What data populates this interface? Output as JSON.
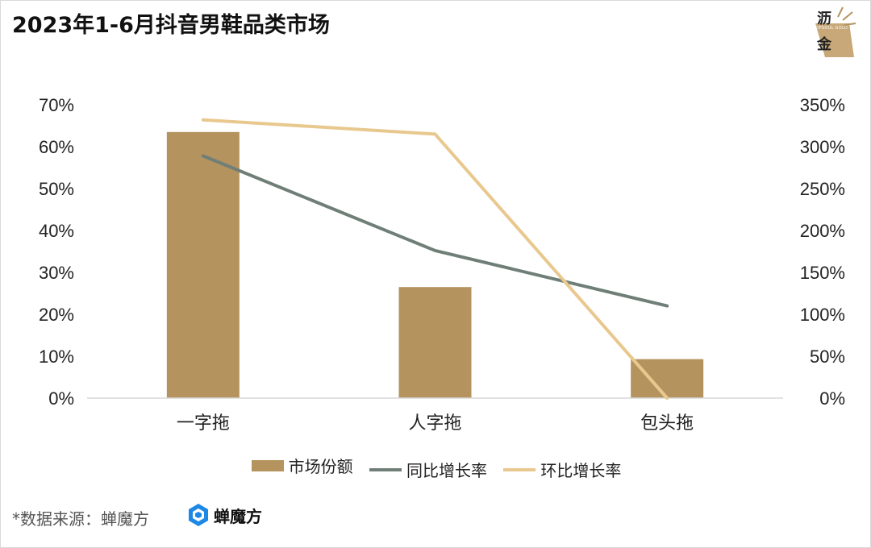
{
  "title": "2023年1-6月抖音男鞋品类市场",
  "logo": {
    "char1": "沥",
    "char2": "金",
    "small": "TOPSOUL GOLD"
  },
  "source_text": "*数据来源：蝉魔方",
  "brand_text": "蝉魔方",
  "colors": {
    "bar": "#b5935e",
    "yoy": "#6f7f77",
    "mom": "#e8c88e"
  },
  "chart_data": {
    "type": "bar",
    "categories": [
      "一字拖",
      "人字拖",
      "包头拖"
    ],
    "series": [
      {
        "name": "市场份额",
        "type": "bar",
        "axis": "left",
        "values": [
          63.5,
          26.5,
          9.3
        ],
        "color": "#b5935e"
      },
      {
        "name": "同比增长率",
        "type": "line",
        "axis": "right",
        "values": [
          289,
          176,
          110
        ],
        "color": "#6f7f77"
      },
      {
        "name": "环比增长率",
        "type": "line",
        "axis": "right",
        "values": [
          332,
          315,
          0
        ],
        "color": "#e8c88e"
      }
    ],
    "y_left": {
      "min": 0,
      "max": 70,
      "step": 10,
      "ticks": [
        "0%",
        "10%",
        "20%",
        "30%",
        "40%",
        "50%",
        "60%",
        "70%"
      ]
    },
    "y_right": {
      "min": 0,
      "max": 350,
      "step": 50,
      "ticks": [
        "0%",
        "50%",
        "100%",
        "150%",
        "200%",
        "250%",
        "300%",
        "350%"
      ]
    },
    "grid": false,
    "legend": "bottom"
  }
}
